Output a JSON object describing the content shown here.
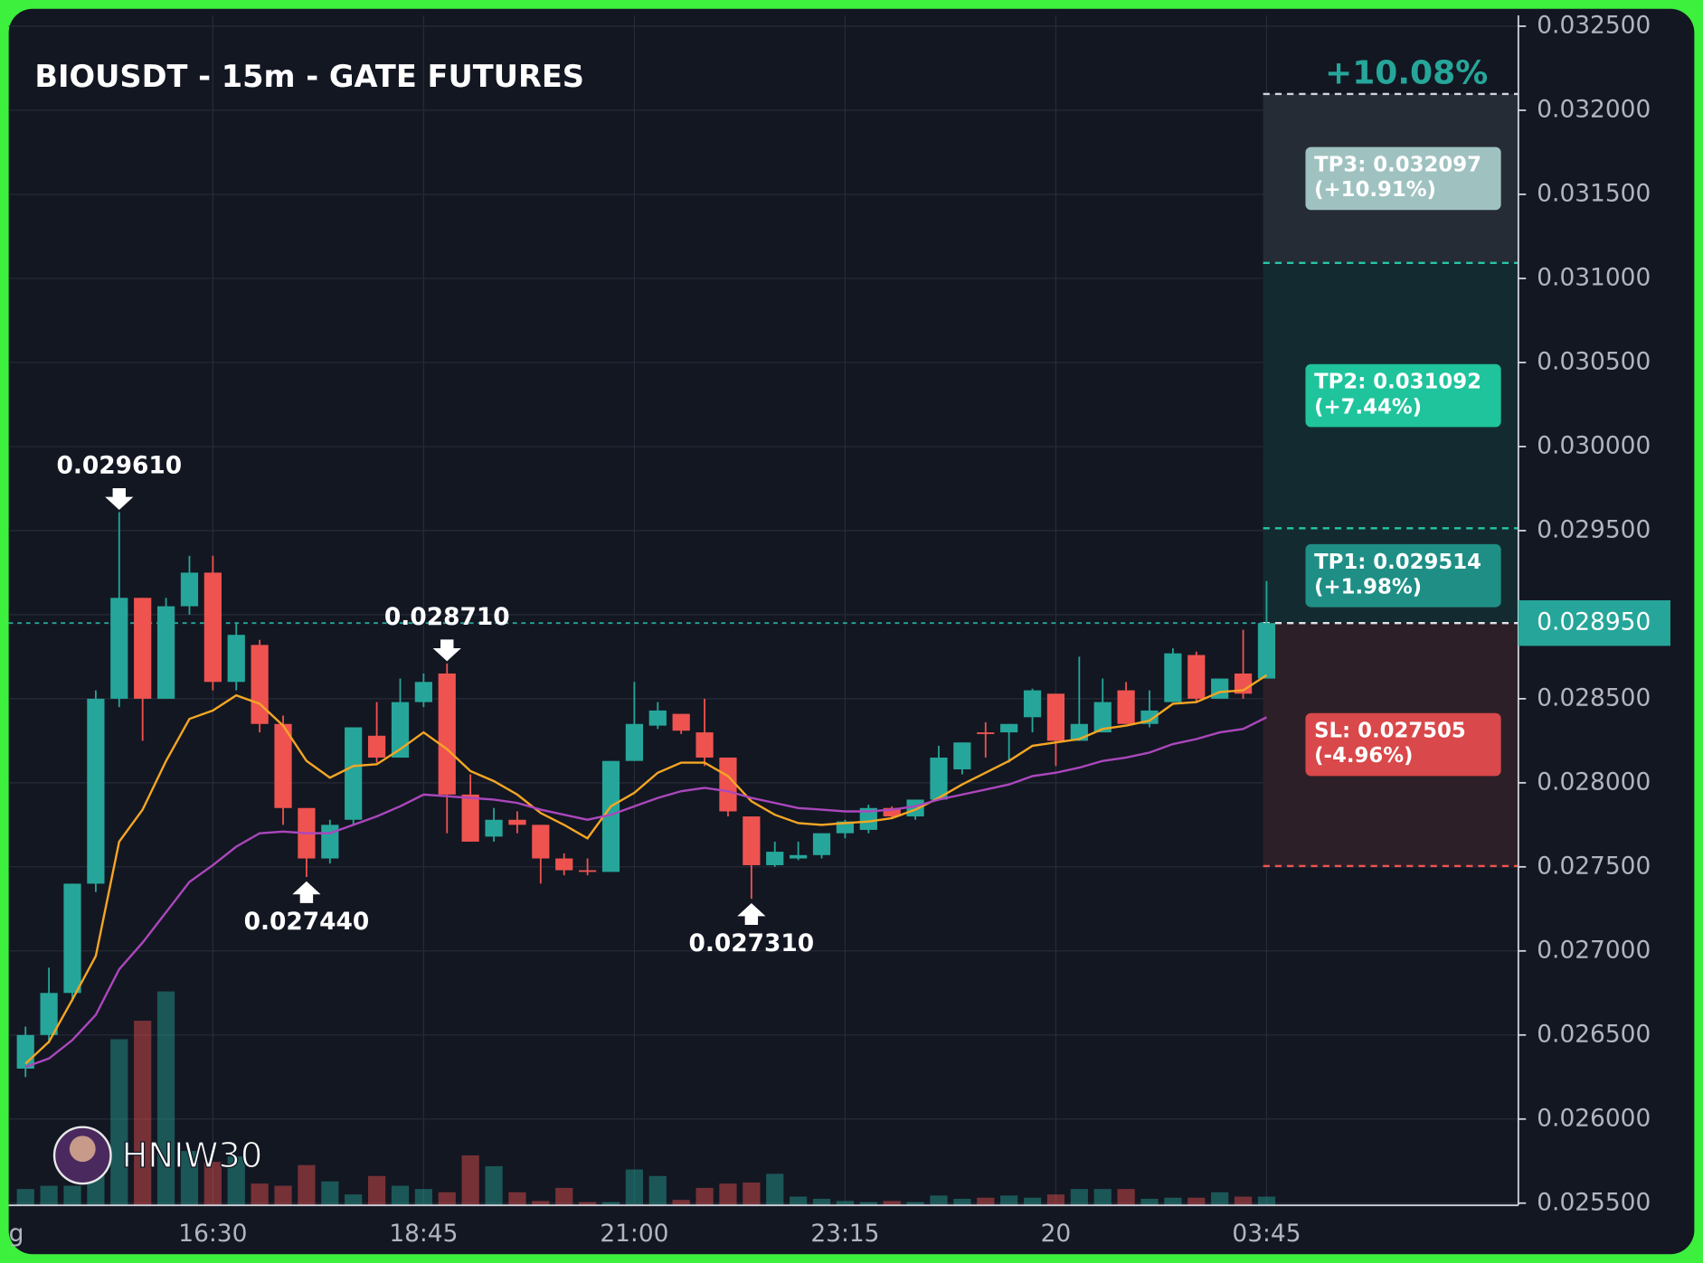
{
  "chart_data": {
    "type": "candlestick",
    "title": "BIOUSDT - 15m - GATE FUTURES",
    "watermark": "HNIW30",
    "x_edge_label": "g",
    "categories": [
      null,
      null,
      null,
      null,
      null,
      null,
      null,
      null,
      "16:30",
      null,
      null,
      null,
      null,
      null,
      null,
      null,
      null,
      "18:45",
      null,
      null,
      null,
      null,
      null,
      null,
      null,
      null,
      "21:00",
      null,
      null,
      null,
      null,
      null,
      null,
      null,
      null,
      "23:15",
      null,
      null,
      null,
      null,
      null,
      null,
      null,
      null,
      "20",
      null,
      null,
      null,
      null,
      null,
      null,
      null,
      null,
      "03:45"
    ],
    "open": [
      0.0263,
      0.0265,
      0.02675,
      0.0274,
      0.0285,
      0.0291,
      0.0285,
      0.02905,
      0.02925,
      0.0286,
      0.02882,
      0.02835,
      0.02785,
      0.02755,
      0.02778,
      0.02828,
      0.02815,
      0.02848,
      0.02865,
      0.02793,
      0.02768,
      0.02778,
      0.02775,
      0.02755,
      0.02748,
      0.02747,
      0.02813,
      0.02834,
      0.02841,
      0.0283,
      0.02815,
      0.0278,
      0.02751,
      0.02755,
      0.02757,
      0.0277,
      0.02772,
      0.02785,
      0.0278,
      0.0279,
      0.02808,
      0.0283,
      0.0283,
      0.02839,
      0.02853,
      0.02825,
      0.0283,
      0.02855,
      0.02835,
      0.02848,
      0.02876,
      0.0285,
      0.02865,
      0.02862
    ],
    "high": [
      0.02655,
      0.0269,
      0.0274,
      0.02855,
      0.02961,
      0.0291,
      0.0291,
      0.02935,
      0.02935,
      0.02895,
      0.02885,
      0.0284,
      0.02785,
      0.02778,
      0.02833,
      0.02848,
      0.02862,
      0.02865,
      0.02871,
      0.02805,
      0.02785,
      0.02783,
      0.02775,
      0.02758,
      0.02755,
      0.02813,
      0.0286,
      0.02848,
      0.02841,
      0.0285,
      0.02815,
      0.0278,
      0.02765,
      0.02765,
      0.0277,
      0.02778,
      0.02787,
      0.02786,
      0.0279,
      0.02822,
      0.02824,
      0.02836,
      0.02835,
      0.02856,
      0.02853,
      0.02875,
      0.02862,
      0.0286,
      0.02855,
      0.0288,
      0.02878,
      0.02862,
      0.02891,
      0.0292
    ],
    "low": [
      0.02625,
      0.02645,
      0.0267,
      0.02735,
      0.02845,
      0.02825,
      0.0285,
      0.029,
      0.02855,
      0.02855,
      0.0283,
      0.02775,
      0.02744,
      0.02752,
      0.02775,
      0.02812,
      0.02815,
      0.02845,
      0.0277,
      0.02765,
      0.02765,
      0.0277,
      0.0274,
      0.02745,
      0.02745,
      0.02747,
      0.02813,
      0.02832,
      0.02829,
      0.0281,
      0.0278,
      0.02731,
      0.0275,
      0.02754,
      0.02755,
      0.02767,
      0.0277,
      0.02779,
      0.02778,
      0.0279,
      0.02805,
      0.02815,
      0.02812,
      0.0283,
      0.0281,
      0.02825,
      0.0283,
      0.02835,
      0.02833,
      0.02848,
      0.02848,
      0.0285,
      0.0285,
      0.02862
    ],
    "close": [
      0.0265,
      0.02675,
      0.0274,
      0.0285,
      0.0291,
      0.0285,
      0.02905,
      0.02925,
      0.0286,
      0.02888,
      0.02835,
      0.02785,
      0.02755,
      0.02775,
      0.02833,
      0.02815,
      0.02848,
      0.0286,
      0.02793,
      0.02765,
      0.02778,
      0.02775,
      0.02755,
      0.02748,
      0.02747,
      0.02813,
      0.02835,
      0.02843,
      0.02831,
      0.02815,
      0.02783,
      0.02751,
      0.02759,
      0.02757,
      0.0277,
      0.02777,
      0.02785,
      0.0278,
      0.0279,
      0.02815,
      0.02824,
      0.02829,
      0.02835,
      0.02855,
      0.02825,
      0.02835,
      0.02848,
      0.02835,
      0.02843,
      0.02877,
      0.0285,
      0.02862,
      0.02853,
      0.02895
    ],
    "volume": [
      15,
      18,
      18,
      28,
      153,
      170,
      197,
      50,
      40,
      45,
      20,
      18,
      37,
      22,
      10,
      27,
      18,
      15,
      12,
      46,
      36,
      12,
      4,
      16,
      3,
      3,
      33,
      27,
      5,
      16,
      20,
      21,
      29,
      8,
      6,
      4,
      3,
      4,
      3,
      9,
      6,
      7,
      9,
      7,
      10,
      15,
      15,
      15,
      6,
      7,
      7,
      12,
      8,
      8
    ],
    "up_color": "#26a69a",
    "down_color": "#ef5350",
    "ma_lines": [
      {
        "color": "#f5a623",
        "values": [
          0.02633,
          0.02646,
          0.02671,
          0.02697,
          0.02765,
          0.02784,
          0.02813,
          0.02838,
          0.02843,
          0.02852,
          0.02847,
          0.02834,
          0.02813,
          0.02803,
          0.0281,
          0.02811,
          0.0282,
          0.0283,
          0.0282,
          0.02807,
          0.02801,
          0.02793,
          0.02782,
          0.02775,
          0.02767,
          0.02786,
          0.02794,
          0.02806,
          0.02812,
          0.02812,
          0.02804,
          0.02789,
          0.02781,
          0.02776,
          0.02775,
          0.02776,
          0.02777,
          0.02779,
          0.02784,
          0.02791,
          0.02799,
          0.02806,
          0.02813,
          0.02822,
          0.02824,
          0.02826,
          0.02832,
          0.02834,
          0.02837,
          0.02847,
          0.02848,
          0.02854,
          0.02855,
          0.02864
        ]
      },
      {
        "color": "#ab47bc",
        "values": [
          0.02631,
          0.02636,
          0.02647,
          0.02662,
          0.02689,
          0.02705,
          0.02723,
          0.02741,
          0.02751,
          0.02762,
          0.0277,
          0.02771,
          0.0277,
          0.0277,
          0.02775,
          0.0278,
          0.02786,
          0.02793,
          0.02792,
          0.02791,
          0.0279,
          0.02788,
          0.02784,
          0.02781,
          0.02778,
          0.02781,
          0.02786,
          0.02791,
          0.02795,
          0.02797,
          0.02795,
          0.02791,
          0.02788,
          0.02785,
          0.02784,
          0.02783,
          0.02783,
          0.02784,
          0.02786,
          0.0279,
          0.02793,
          0.02796,
          0.02799,
          0.02804,
          0.02806,
          0.02809,
          0.02813,
          0.02815,
          0.02818,
          0.02823,
          0.02826,
          0.0283,
          0.02832,
          0.02839
        ]
      }
    ],
    "ylim": [
      0.0255,
      0.0325
    ],
    "yticks": [
      {
        "value": 0.0255,
        "label": "0.025500"
      },
      {
        "value": 0.026,
        "label": "0.026000"
      },
      {
        "value": 0.0265,
        "label": "0.026500"
      },
      {
        "value": 0.027,
        "label": "0.027000"
      },
      {
        "value": 0.0275,
        "label": "0.027500"
      },
      {
        "value": 0.028,
        "label": "0.028000"
      },
      {
        "value": 0.0285,
        "label": "0.028500"
      },
      {
        "value": 0.029,
        "label": "0.029000"
      },
      {
        "value": 0.0295,
        "label": "0.029500"
      },
      {
        "value": 0.03,
        "label": "0.030000"
      },
      {
        "value": 0.0305,
        "label": "0.030500"
      },
      {
        "value": 0.031,
        "label": "0.031000"
      },
      {
        "value": 0.0315,
        "label": "0.031500"
      },
      {
        "value": 0.032,
        "label": "0.032000"
      },
      {
        "value": 0.0325,
        "label": "0.032500"
      }
    ],
    "grid": true,
    "annotations": [
      {
        "value": 0.02961,
        "label": "0.029610"
      },
      {
        "value": 0.02871,
        "label": "0.028710"
      },
      {
        "value": 0.02744,
        "label": "0.027440"
      },
      {
        "value": 0.02731,
        "label": "0.027310"
      }
    ],
    "current_price": {
      "value": 0.02895,
      "label": "0.028950"
    },
    "target_label": "+10.08%",
    "levels": [
      {
        "label": "TP3: 0.032097",
        "pct_label": "(+10.91%)",
        "value": 0.032097,
        "color": "#9fc2c0",
        "zone_color": "#262c36"
      },
      {
        "label": "TP2: 0.031092",
        "pct_label": "(+7.44%)",
        "value": 0.031092,
        "color": "#1fc49c",
        "zone_color": "#132b30"
      },
      {
        "label": "TP1: 0.029514",
        "pct_label": "(+1.98%)",
        "value": 0.029514,
        "color": "#1f8f86",
        "zone_color": "#132b30"
      },
      {
        "label": "SL: 0.027505",
        "pct_label": "(-4.96%)",
        "value": 0.027505,
        "color": "#d9484a",
        "zone_color": "#2d1f27"
      }
    ]
  }
}
